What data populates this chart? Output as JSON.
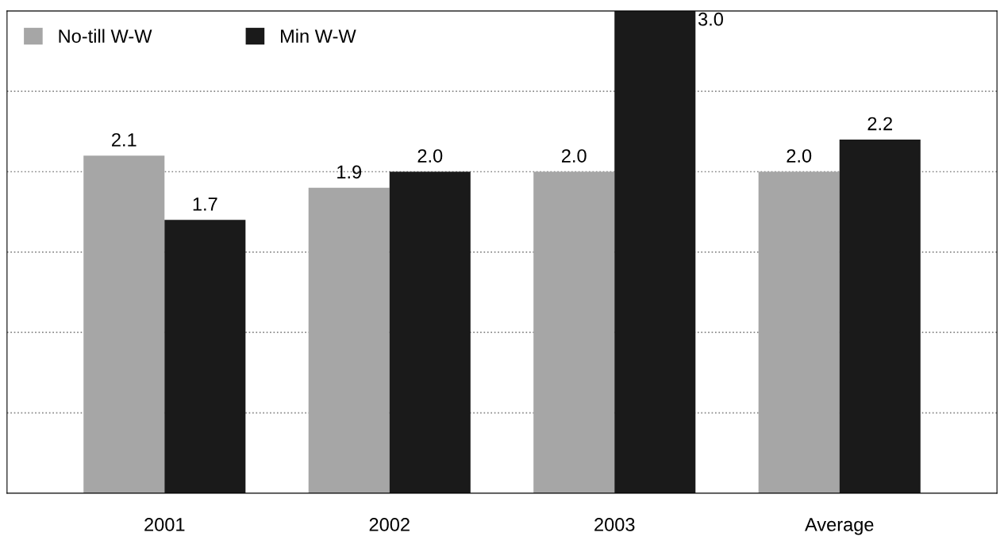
{
  "chart_data": {
    "type": "bar",
    "categories": [
      "2001",
      "2002",
      "2003",
      "Average"
    ],
    "series": [
      {
        "name": "No-till W-W",
        "color": "#a6a6a6",
        "values": [
          2.1,
          1.9,
          2.0,
          2.0
        ],
        "value_labels": [
          "2.1",
          "1.9",
          "2.0",
          "2.0"
        ]
      },
      {
        "name": "Min W-W",
        "color": "#1a1a1a",
        "values": [
          1.7,
          2.0,
          3.0,
          2.2
        ],
        "value_labels": [
          "1.7",
          "2.0",
          "3.0",
          "2.2"
        ]
      }
    ],
    "ylim": [
      0,
      3.0
    ],
    "yticks": [
      {
        "value": 0.5,
        "label": null
      },
      {
        "value": 1.0,
        "label": null
      },
      {
        "value": 1.5,
        "label": null
      },
      {
        "value": 2.0,
        "label": null
      },
      {
        "value": 2.5,
        "label": null
      }
    ],
    "tick_labels": "x",
    "grid": "y",
    "legend": "top left"
  }
}
